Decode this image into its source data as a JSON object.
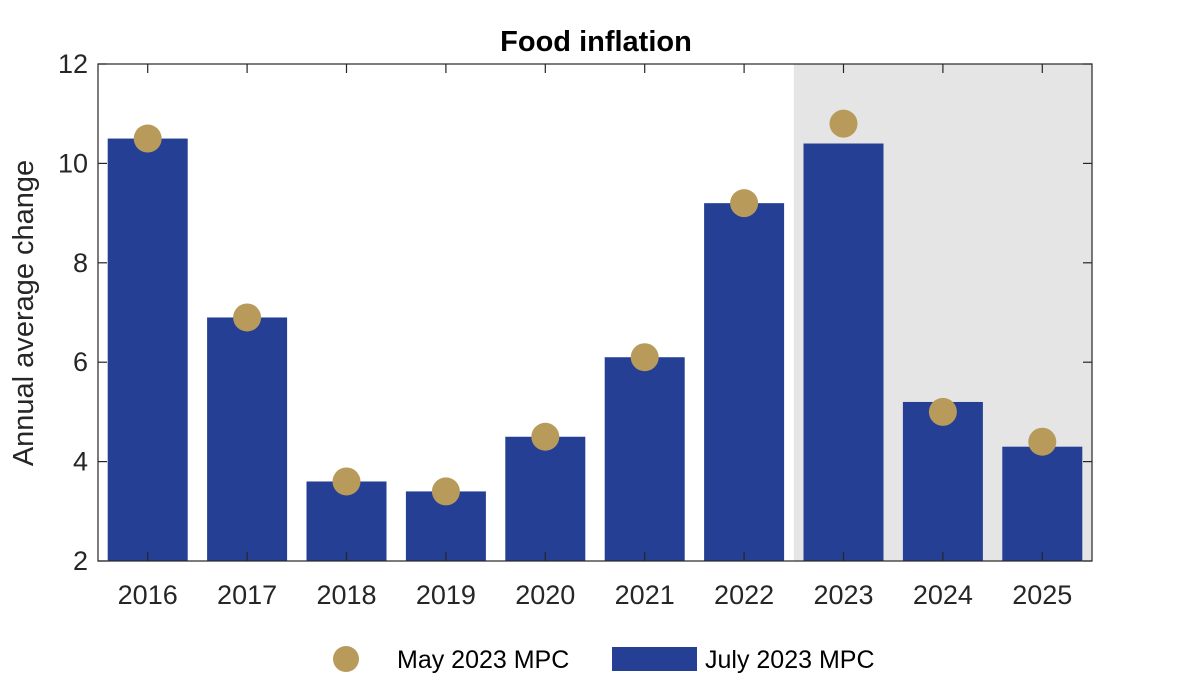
{
  "chart_data": {
    "type": "bar",
    "title": "Food inflation",
    "xlabel": "",
    "ylabel": "Annual average change",
    "categories": [
      "2016",
      "2017",
      "2018",
      "2019",
      "2020",
      "2021",
      "2022",
      "2023",
      "2024",
      "2025"
    ],
    "series": [
      {
        "name": "July 2023 MPC",
        "kind": "bar",
        "values": [
          10.5,
          6.9,
          3.6,
          3.4,
          4.5,
          6.1,
          9.2,
          10.4,
          5.2,
          4.3
        ]
      },
      {
        "name": "May 2023 MPC",
        "kind": "marker",
        "values": [
          10.5,
          6.9,
          3.6,
          3.4,
          4.5,
          6.1,
          9.2,
          10.8,
          5.0,
          4.4
        ]
      }
    ],
    "ylim": [
      2,
      12
    ],
    "yticks": [
      2,
      4,
      6,
      8,
      10,
      12
    ],
    "shaded_region": {
      "from": "2023",
      "to": "2025",
      "meaning": "forecast period"
    },
    "grid": false,
    "legend_position": "bottom",
    "colors": {
      "bar": "#253f94",
      "marker": "#b89b5a",
      "shade": "#e5e5e5"
    }
  }
}
